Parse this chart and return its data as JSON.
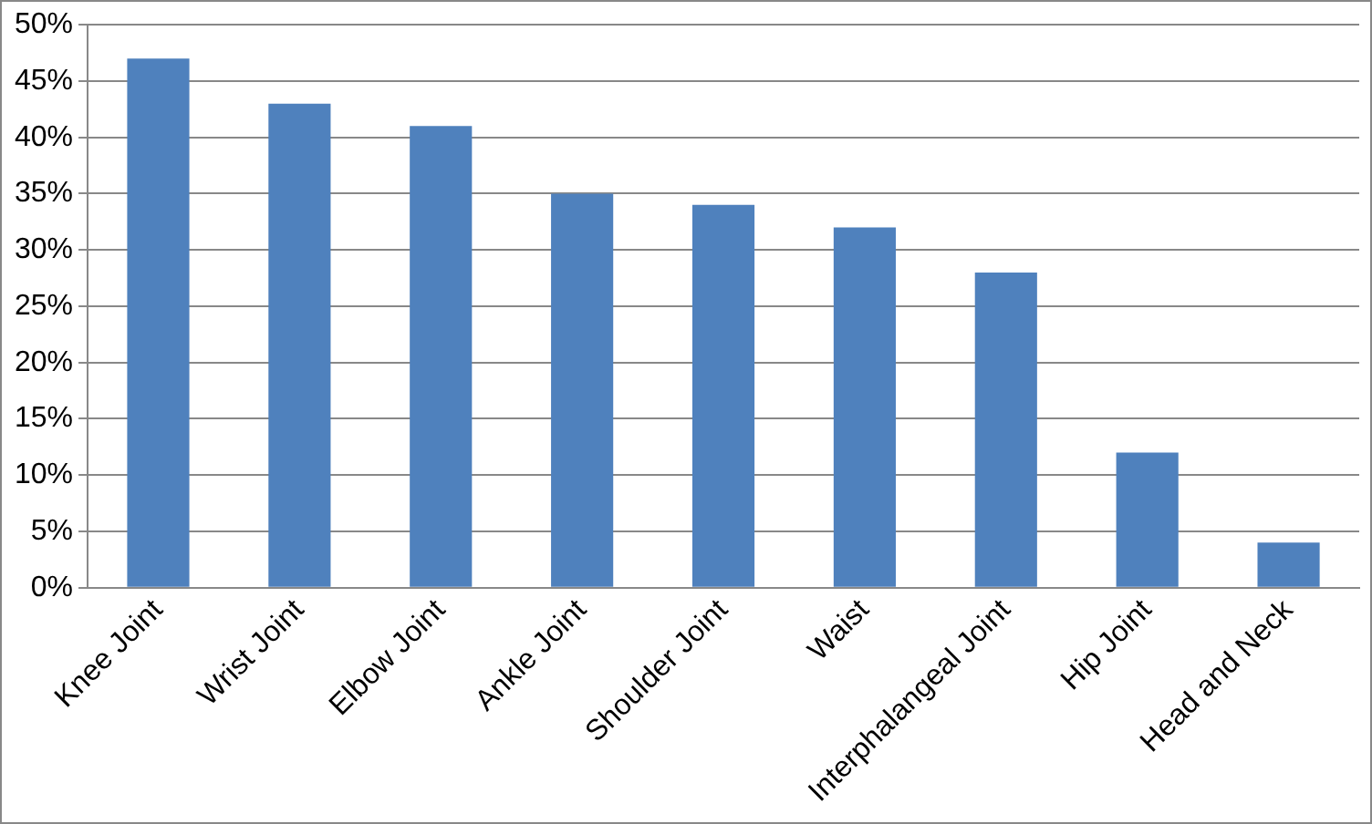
{
  "chart_data": {
    "type": "bar",
    "categories": [
      "Knee Joint",
      "Wrist Joint",
      "Elbow Joint",
      "Ankle Joint",
      "Shoulder Joint",
      "Waist",
      "Interphalangeal Joint",
      "Hip Joint",
      "Head and Neck"
    ],
    "values": [
      47,
      43,
      41,
      35,
      34,
      32,
      28,
      12,
      4
    ],
    "color": "#4f81bd",
    "ylim": [
      0,
      50
    ],
    "yticks": [
      {
        "value": 0,
        "label": "0%"
      },
      {
        "value": 5,
        "label": "5%"
      },
      {
        "value": 10,
        "label": "10%"
      },
      {
        "value": 15,
        "label": "15%"
      },
      {
        "value": 20,
        "label": "20%"
      },
      {
        "value": 25,
        "label": "25%"
      },
      {
        "value": 30,
        "label": "30%"
      },
      {
        "value": 35,
        "label": "35%"
      },
      {
        "value": 40,
        "label": "40%"
      },
      {
        "value": 45,
        "label": "45%"
      },
      {
        "value": 50,
        "label": "50%"
      }
    ],
    "grid": "y",
    "legend": false
  }
}
